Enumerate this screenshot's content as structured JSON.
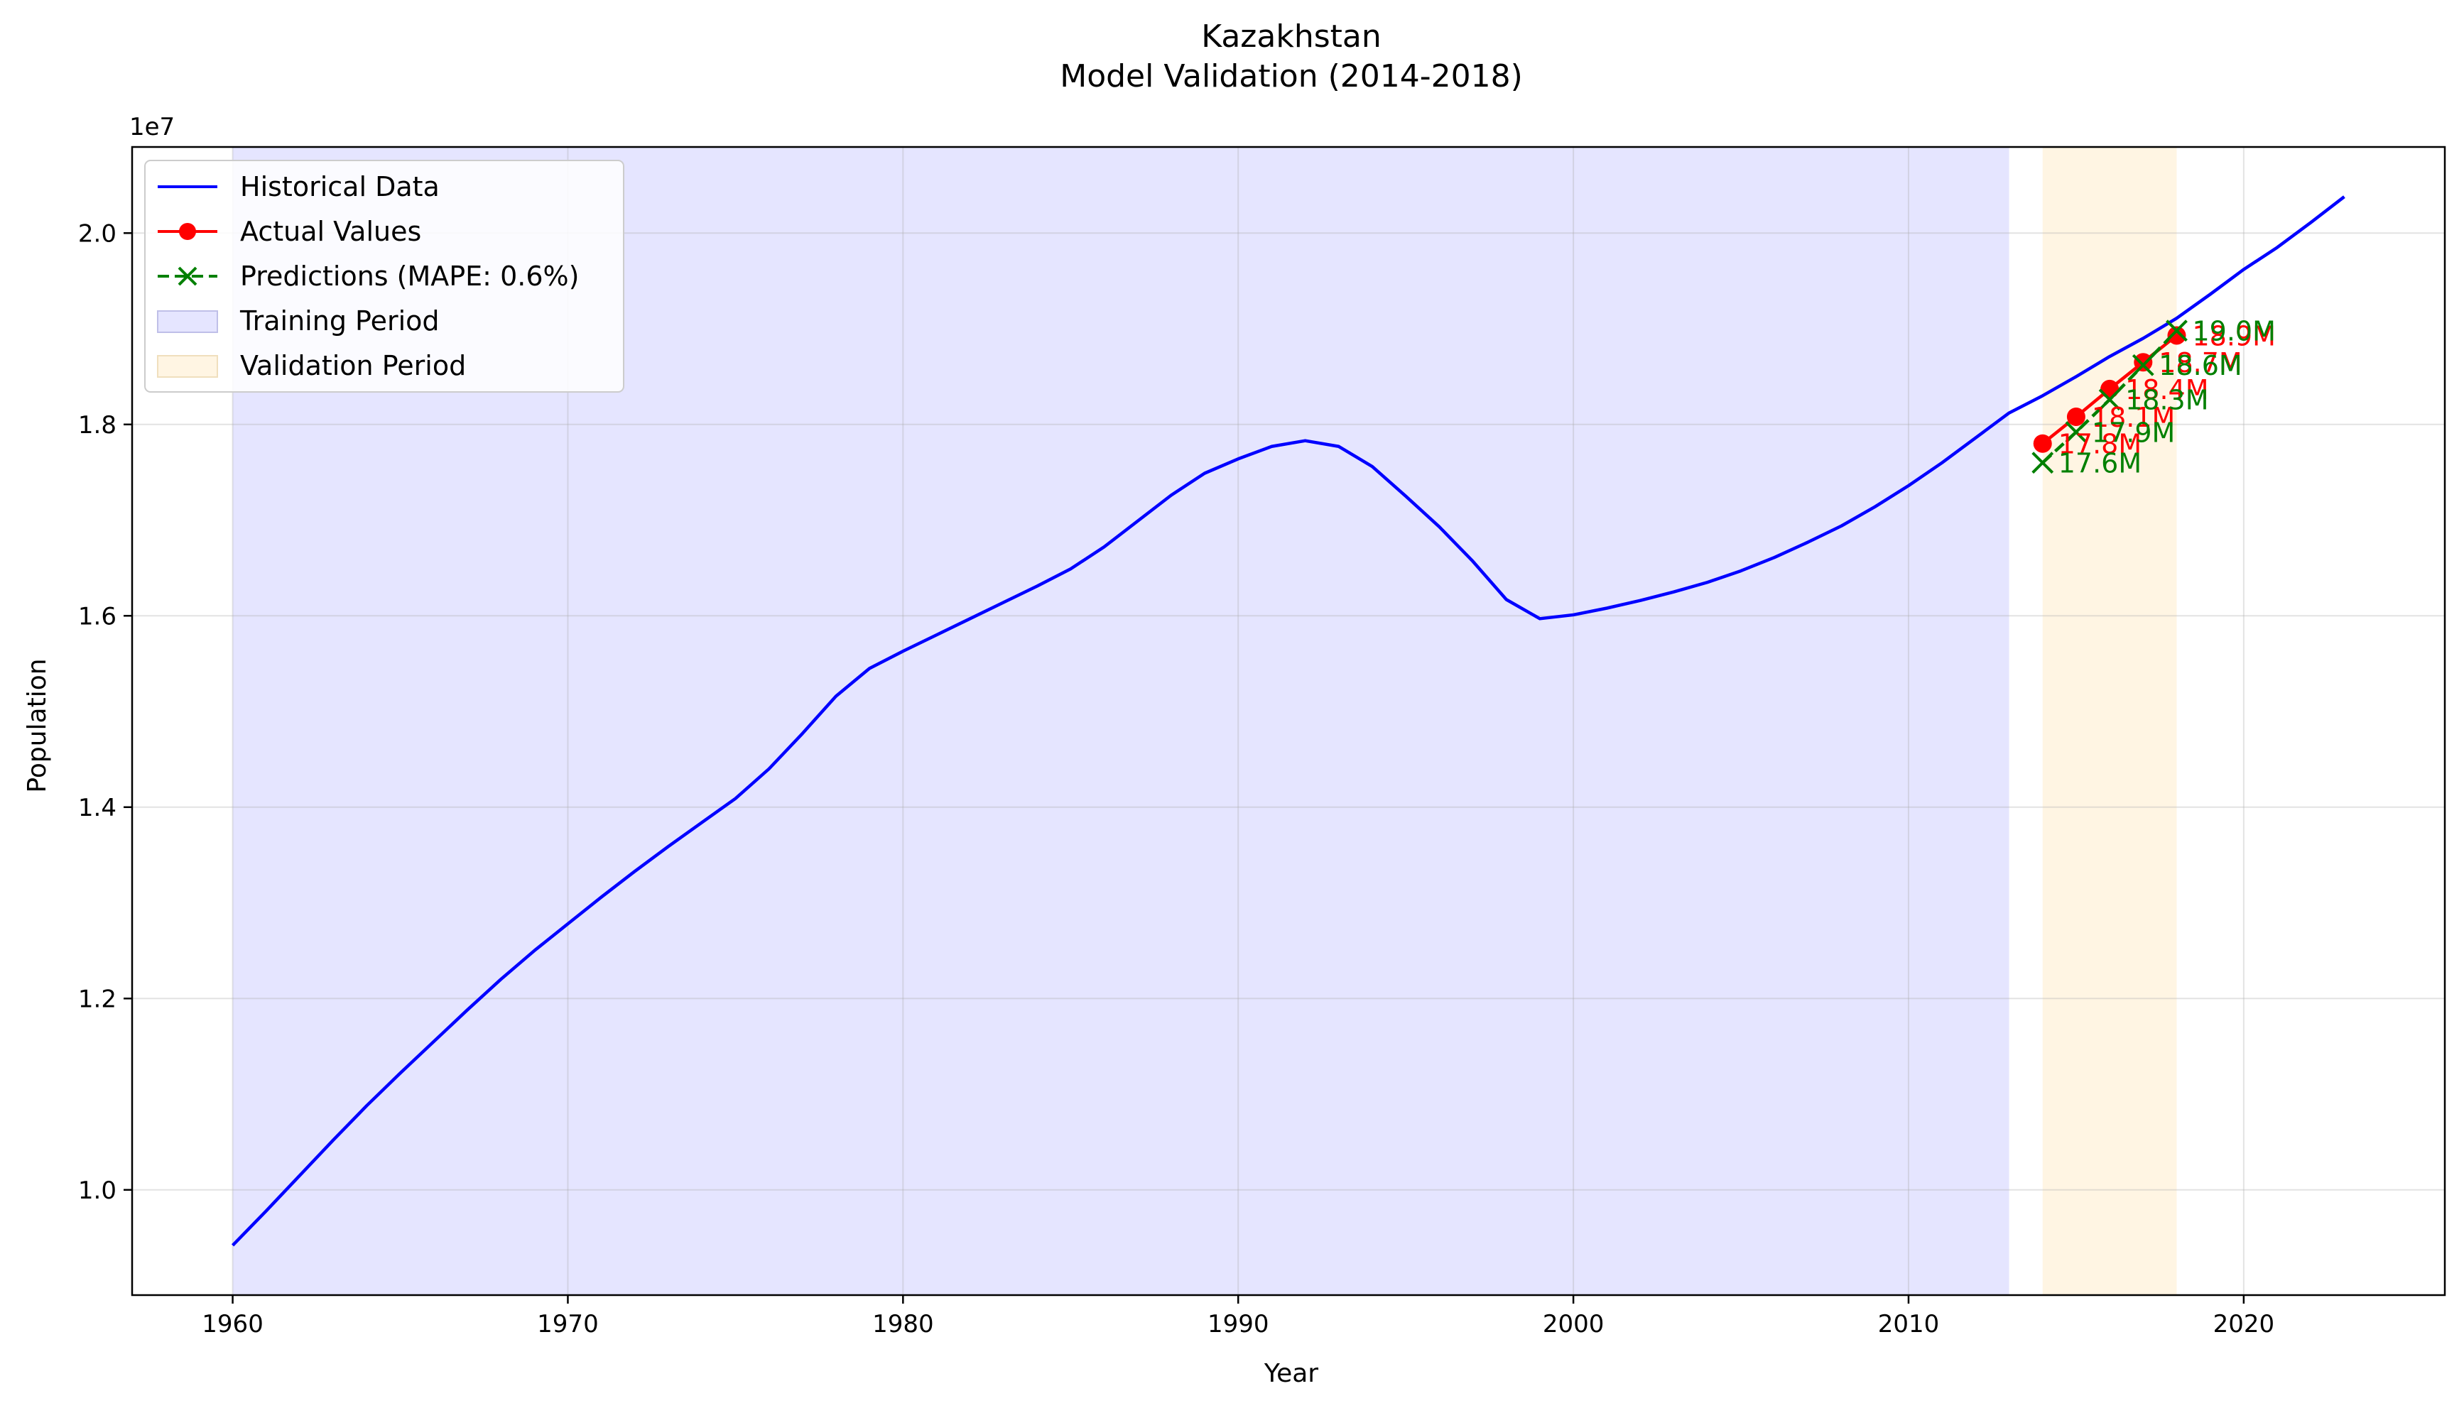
{
  "chart_data": {
    "type": "line",
    "title": "Kazakhstan",
    "subtitle": "Model Validation (2014-2018)",
    "xlabel": "Year",
    "ylabel": "Population",
    "y_offset_label": "1e7",
    "xlim": [
      1957,
      2026
    ],
    "ylim": [
      8900000,
      20900000
    ],
    "x_ticks": [
      1960,
      1970,
      1980,
      1990,
      2000,
      2010,
      2020
    ],
    "y_ticks": [
      10000000,
      12000000,
      14000000,
      16000000,
      18000000,
      20000000
    ],
    "y_tick_labels": [
      "1.0",
      "1.2",
      "1.4",
      "1.6",
      "1.8",
      "2.0"
    ],
    "grid": true,
    "legend_position": "upper-left",
    "colors": {
      "historical": "#0000ff",
      "actual": "#ff0000",
      "predictions": "#008000",
      "training": "#e5e5ff",
      "validation": "#fff5e3"
    },
    "regions": [
      {
        "name": "Training Period",
        "x_start": 1960,
        "x_end": 2013
      },
      {
        "name": "Validation Period",
        "x_start": 2014,
        "x_end": 2018
      }
    ],
    "series": [
      {
        "name": "Historical Data",
        "x": [
          1960,
          1961,
          1962,
          1963,
          1964,
          1965,
          1966,
          1967,
          1968,
          1969,
          1970,
          1971,
          1972,
          1973,
          1974,
          1975,
          1976,
          1977,
          1978,
          1979,
          1980,
          1981,
          1982,
          1983,
          1984,
          1985,
          1986,
          1987,
          1988,
          1989,
          1990,
          1991,
          1992,
          1993,
          1994,
          1995,
          1996,
          1997,
          1998,
          1999,
          2000,
          2001,
          2002,
          2003,
          2004,
          2005,
          2006,
          2007,
          2008,
          2009,
          2010,
          2011,
          2012,
          2013,
          2014,
          2015,
          2016,
          2017,
          2018,
          2019,
          2020,
          2021,
          2022,
          2023
        ],
        "y": [
          9420000,
          9780000,
          10150000,
          10520000,
          10880000,
          11220000,
          11550000,
          11880000,
          12200000,
          12500000,
          12780000,
          13060000,
          13330000,
          13590000,
          13840000,
          14090000,
          14400000,
          14770000,
          15160000,
          15450000,
          15630000,
          15800000,
          15970000,
          16140000,
          16310000,
          16490000,
          16720000,
          16990000,
          17260000,
          17490000,
          17640000,
          17770000,
          17830000,
          17770000,
          17560000,
          17250000,
          16930000,
          16570000,
          16170000,
          15970000,
          16010000,
          16080000,
          16160000,
          16250000,
          16350000,
          16470000,
          16610000,
          16770000,
          16940000,
          17140000,
          17360000,
          17600000,
          17860000,
          18120000,
          18300000,
          18500000,
          18710000,
          18900000,
          19110000,
          19360000,
          19620000,
          19850000,
          20110000,
          20380000
        ]
      },
      {
        "name": "Actual Values",
        "x": [
          2014,
          2015,
          2016,
          2017,
          2018
        ],
        "y": [
          17800000,
          18080000,
          18370000,
          18650000,
          18930000
        ],
        "labels": [
          "17.8M",
          "18.1M",
          "18.4M",
          "18.7M",
          "18.9M"
        ]
      },
      {
        "name": "Predictions (MAPE: 0.6%)",
        "x": [
          2014,
          2015,
          2016,
          2017,
          2018
        ],
        "y": [
          17600000,
          17920000,
          18260000,
          18620000,
          18980000
        ],
        "labels": [
          "17.6M",
          "17.9M",
          "18.3M",
          "18.6M",
          "19.0M"
        ]
      }
    ]
  }
}
